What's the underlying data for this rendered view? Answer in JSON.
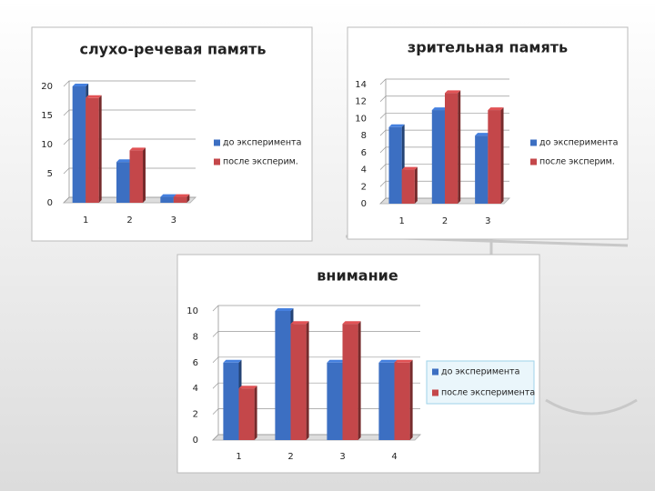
{
  "chart_data": [
    {
      "type": "bar",
      "title": "слухо-речевая память",
      "categories": [
        "1",
        "2",
        "3"
      ],
      "series": [
        {
          "name": "до эксперимента",
          "color": "#3c6fc2",
          "values": [
            20,
            7,
            1
          ]
        },
        {
          "name": "после эксперим.",
          "color": "#c4474a",
          "values": [
            18,
            9,
            1
          ]
        }
      ],
      "ylim": [
        0,
        20
      ],
      "yticks": [
        0,
        5,
        10,
        15,
        20
      ],
      "grid": true
    },
    {
      "type": "bar",
      "title": "зрительная память",
      "categories": [
        "1",
        "2",
        "3"
      ],
      "series": [
        {
          "name": "до эксперимента",
          "color": "#3c6fc2",
          "values": [
            9,
            11,
            8
          ]
        },
        {
          "name": "после эксперим.",
          "color": "#c4474a",
          "values": [
            4,
            13,
            11
          ]
        }
      ],
      "ylim": [
        0,
        14
      ],
      "yticks": [
        0,
        2,
        4,
        6,
        8,
        10,
        12,
        14
      ],
      "grid": true
    },
    {
      "type": "bar",
      "title": "внимание",
      "categories": [
        "1",
        "2",
        "3",
        "4"
      ],
      "series": [
        {
          "name": "до эксперимента",
          "color": "#3c6fc2",
          "values": [
            6,
            10,
            6,
            6
          ]
        },
        {
          "name": "после эксперимента",
          "color": "#c4474a",
          "values": [
            4,
            9,
            9,
            6
          ]
        }
      ],
      "ylim": [
        0,
        10
      ],
      "yticks": [
        0,
        2,
        4,
        6,
        8,
        10
      ],
      "grid": true
    }
  ]
}
